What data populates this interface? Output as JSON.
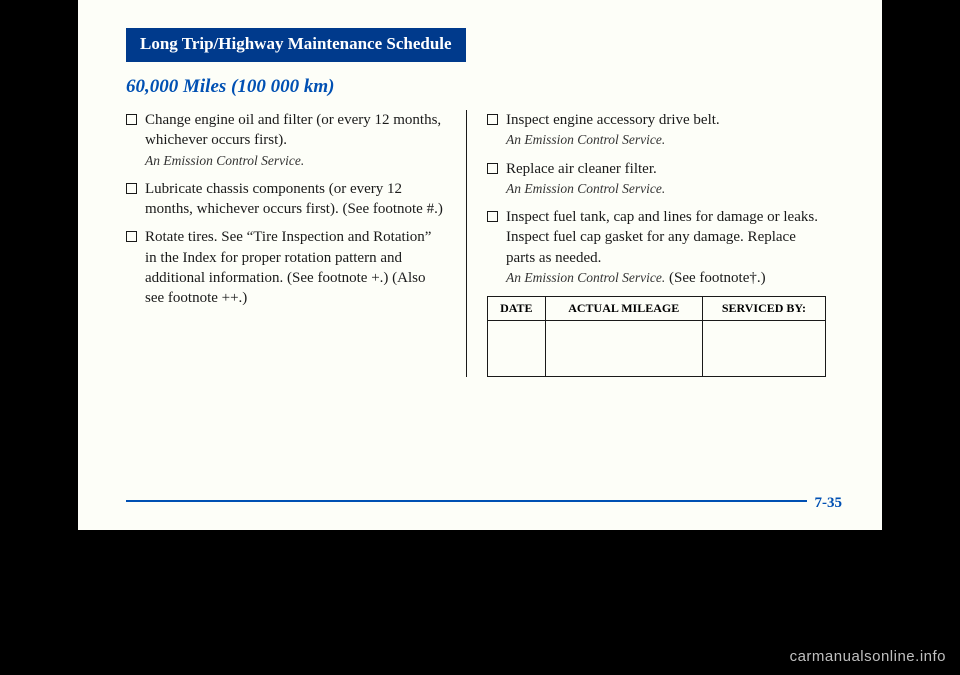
{
  "header": "Long Trip/Highway Maintenance Schedule",
  "section_title": "60,000 Miles (100 000 km)",
  "left_items": [
    {
      "text": "Change engine oil and filter (or every 12 months, whichever occurs first).",
      "note": "An Emission Control Service."
    },
    {
      "text": "Lubricate chassis components (or every 12 months, whichever occurs first). (See footnote #.)",
      "note": ""
    },
    {
      "text": "Rotate tires. See “Tire Inspection and Rotation” in the Index for proper rotation pattern and additional information. (See footnote +.) (Also see footnote ++.)",
      "note": ""
    }
  ],
  "right_items": [
    {
      "text": "Inspect engine accessory drive belt.",
      "note": "An Emission Control Service."
    },
    {
      "text": "Replace air cleaner filter.",
      "note": "An Emission Control Service."
    },
    {
      "text": "Inspect fuel tank, cap and lines for damage or leaks. Inspect fuel cap gasket for any damage. Replace parts as needed.",
      "note": "An Emission Control Service.",
      "trailing": " (See footnote†.)"
    }
  ],
  "table": {
    "headers": [
      "DATE",
      "ACTUAL MILEAGE",
      "SERVICED BY:"
    ]
  },
  "page_number": "7-35",
  "watermark": "carmanualsonline.info",
  "colors": {
    "header_bg": "#003a8c",
    "accent": "#0050b3",
    "page_bg": "#fdfef8"
  }
}
